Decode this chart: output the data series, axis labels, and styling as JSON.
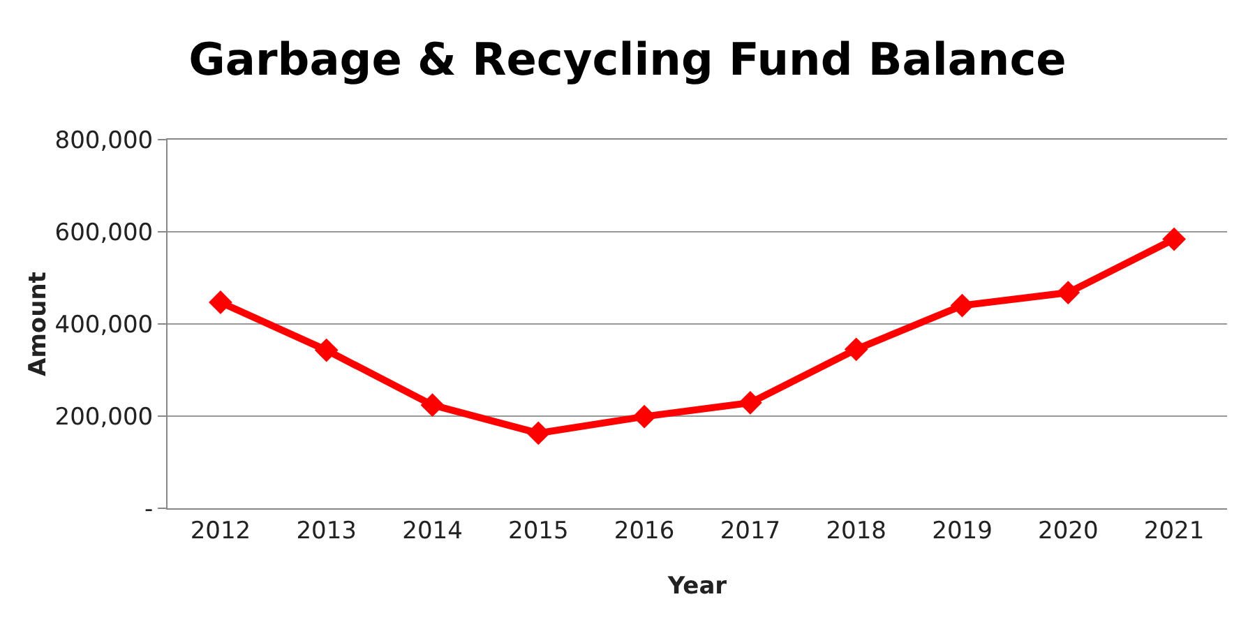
{
  "chart_data": {
    "type": "line",
    "title": "Garbage & Recycling Fund Balance",
    "xlabel": "Year",
    "ylabel": "Amount",
    "categories": [
      "2012",
      "2013",
      "2014",
      "2015",
      "2016",
      "2017",
      "2018",
      "2019",
      "2020",
      "2021"
    ],
    "series": [
      {
        "color": "#ff0000",
        "values": [
          447000,
          343000,
          224000,
          163000,
          199000,
          229000,
          345000,
          440000,
          468000,
          584000
        ]
      }
    ],
    "ylim": [
      0,
      800000
    ],
    "yticks": [
      {
        "value": 0,
        "label": "-"
      },
      {
        "value": 200000,
        "label": "200,000"
      },
      {
        "value": 400000,
        "label": "400,000"
      },
      {
        "value": 600000,
        "label": "600,000"
      },
      {
        "value": 800000,
        "label": "800,000"
      }
    ],
    "grid": "y",
    "marker": "diamond",
    "line_style": "solid"
  }
}
